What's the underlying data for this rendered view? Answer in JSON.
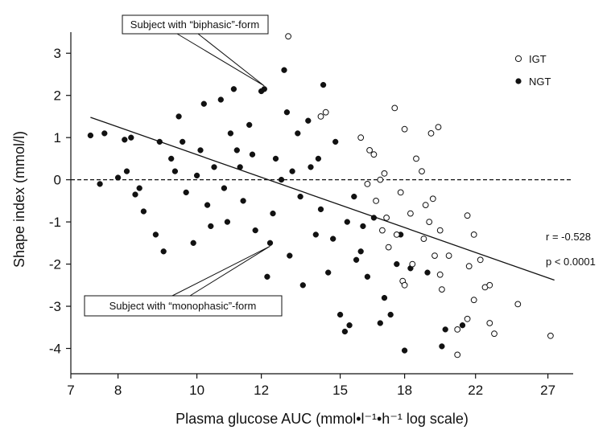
{
  "chart_data": {
    "type": "scatter",
    "title": "",
    "xlabel": "Plasma glucose AUC (mmol•l⁻¹•h⁻¹ log scale)",
    "ylabel": "Shape index (mmol/l)",
    "x_scale": "log",
    "xlim": [
      7,
      29
    ],
    "ylim": [
      -4.6,
      3.5
    ],
    "x_ticks": [
      7,
      8,
      10,
      12,
      15,
      18,
      22,
      27
    ],
    "y_ticks": [
      -4,
      -3,
      -2,
      -1,
      0,
      1,
      2,
      3
    ],
    "grid": false,
    "legend_position": "top-right",
    "reference_line": {
      "y": 0,
      "style": "dashed"
    },
    "regression_line": {
      "x": [
        7.4,
        27.5
      ],
      "y": [
        1.48,
        -2.38
      ]
    },
    "annotations": {
      "r": "r = -0.528",
      "p": "p < 0.0001",
      "biphasic": "Subject with “biphasic”-form",
      "monophasic": "Subject with “monophasic”-form"
    },
    "callout_targets": {
      "biphasic": {
        "x": 12.1,
        "y": 2.15
      },
      "monophasic": {
        "x": 12.3,
        "y": -1.5
      }
    },
    "series": [
      {
        "name": "IGT",
        "marker": "open-circle",
        "points": [
          [
            12.95,
            3.4
          ],
          [
            14.4,
            1.6
          ],
          [
            14.2,
            1.5
          ],
          [
            15.9,
            1.0
          ],
          [
            16.3,
            0.7
          ],
          [
            16.5,
            0.6
          ],
          [
            17.0,
            0.15
          ],
          [
            16.6,
            -0.5
          ],
          [
            17.1,
            -0.9
          ],
          [
            16.9,
            -1.2
          ],
          [
            17.2,
            -1.6
          ],
          [
            17.9,
            -2.4
          ],
          [
            18.0,
            -2.5
          ],
          [
            17.5,
            1.7
          ],
          [
            18.0,
            1.2
          ],
          [
            18.6,
            0.5
          ],
          [
            19.8,
            1.25
          ],
          [
            19.4,
            1.1
          ],
          [
            19.5,
            -0.45
          ],
          [
            19.1,
            -0.6
          ],
          [
            19.3,
            -1.0
          ],
          [
            19.9,
            -1.2
          ],
          [
            19.6,
            -1.8
          ],
          [
            19.9,
            -2.25
          ],
          [
            20.0,
            -2.6
          ],
          [
            20.4,
            -1.8
          ],
          [
            21.5,
            -0.85
          ],
          [
            21.9,
            -1.3
          ],
          [
            21.6,
            -2.05
          ],
          [
            22.3,
            -1.9
          ],
          [
            22.6,
            -2.55
          ],
          [
            22.9,
            -2.5
          ],
          [
            21.9,
            -2.85
          ],
          [
            20.9,
            -3.55
          ],
          [
            21.5,
            -3.3
          ],
          [
            22.9,
            -3.4
          ],
          [
            23.2,
            -3.65
          ],
          [
            24.8,
            -2.95
          ],
          [
            27.2,
            -3.7
          ],
          [
            20.9,
            -4.15
          ],
          [
            18.9,
            0.2
          ],
          [
            17.8,
            -0.3
          ],
          [
            18.3,
            -0.8
          ],
          [
            16.2,
            -0.1
          ],
          [
            16.8,
            0.0
          ],
          [
            19.0,
            -1.4
          ],
          [
            17.6,
            -1.3
          ],
          [
            18.4,
            -2.0
          ]
        ]
      },
      {
        "name": "NGT",
        "marker": "filled-circle",
        "points": [
          [
            7.4,
            1.05
          ],
          [
            7.7,
            1.1
          ],
          [
            7.6,
            -0.1
          ],
          [
            8.0,
            0.05
          ],
          [
            8.15,
            0.95
          ],
          [
            8.3,
            1.0
          ],
          [
            8.2,
            0.2
          ],
          [
            8.5,
            -0.2
          ],
          [
            8.4,
            -0.35
          ],
          [
            8.6,
            -0.75
          ],
          [
            8.9,
            -1.3
          ],
          [
            9.1,
            -1.7
          ],
          [
            9.0,
            0.9
          ],
          [
            9.3,
            0.5
          ],
          [
            9.5,
            1.5
          ],
          [
            9.7,
            -0.3
          ],
          [
            9.9,
            -1.5
          ],
          [
            10.0,
            0.1
          ],
          [
            10.2,
            1.8
          ],
          [
            10.3,
            -0.6
          ],
          [
            10.5,
            0.3
          ],
          [
            10.7,
            1.9
          ],
          [
            10.9,
            -1.0
          ],
          [
            11.1,
            2.15
          ],
          [
            11.2,
            0.7
          ],
          [
            11.4,
            -0.5
          ],
          [
            11.6,
            1.3
          ],
          [
            11.8,
            -1.2
          ],
          [
            12.0,
            2.1
          ],
          [
            12.1,
            2.15
          ],
          [
            12.3,
            -1.5
          ],
          [
            12.2,
            -2.3
          ],
          [
            12.5,
            0.5
          ],
          [
            12.8,
            2.6
          ],
          [
            13.0,
            -1.8
          ],
          [
            13.3,
            1.1
          ],
          [
            13.5,
            -2.5
          ],
          [
            13.8,
            0.3
          ],
          [
            14.0,
            -1.3
          ],
          [
            14.3,
            2.25
          ],
          [
            14.5,
            -2.2
          ],
          [
            14.8,
            0.9
          ],
          [
            15.0,
            -3.2
          ],
          [
            15.2,
            -3.6
          ],
          [
            15.4,
            -3.45
          ],
          [
            15.6,
            -0.4
          ],
          [
            15.9,
            -1.7
          ],
          [
            16.2,
            -2.3
          ],
          [
            16.5,
            -0.9
          ],
          [
            17.0,
            -2.8
          ],
          [
            17.3,
            -3.2
          ],
          [
            17.6,
            -2.0
          ],
          [
            18.0,
            -4.05
          ],
          [
            18.3,
            -2.1
          ],
          [
            19.2,
            -2.2
          ],
          [
            20.2,
            -3.55
          ],
          [
            20.0,
            -3.95
          ],
          [
            21.2,
            -3.45
          ],
          [
            16.8,
            -3.4
          ],
          [
            17.8,
            -1.3
          ],
          [
            9.6,
            0.9
          ],
          [
            10.1,
            0.7
          ],
          [
            11.3,
            0.3
          ],
          [
            12.7,
            0.0
          ],
          [
            13.4,
            -0.4
          ],
          [
            14.2,
            -0.7
          ],
          [
            15.3,
            -1.0
          ],
          [
            16.0,
            -1.1
          ],
          [
            11.7,
            0.6
          ],
          [
            13.1,
            0.2
          ],
          [
            10.8,
            -0.2
          ],
          [
            9.4,
            0.2
          ],
          [
            12.4,
            -0.8
          ],
          [
            14.7,
            -1.4
          ],
          [
            15.7,
            -1.9
          ],
          [
            13.7,
            1.4
          ],
          [
            12.9,
            1.6
          ],
          [
            11.0,
            1.1
          ],
          [
            10.4,
            -1.1
          ],
          [
            14.1,
            0.5
          ]
        ]
      }
    ]
  }
}
